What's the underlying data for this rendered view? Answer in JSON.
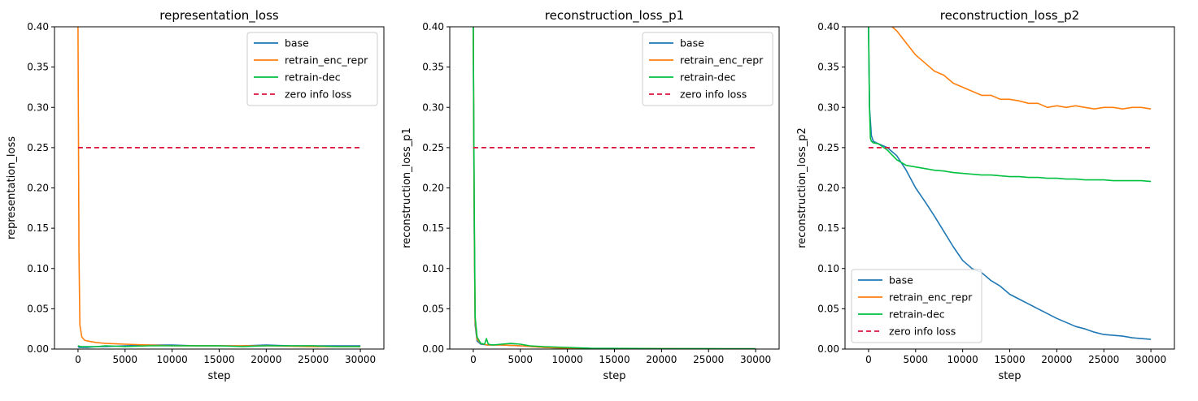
{
  "chart_data": [
    {
      "type": "line",
      "title": "representation_loss",
      "xlabel": "step",
      "ylabel": "representation_loss",
      "xlim": [
        -2500,
        32500
      ],
      "ylim": [
        0,
        0.4
      ],
      "xticks": [
        0,
        5000,
        10000,
        15000,
        20000,
        25000,
        30000
      ],
      "yticks": [
        "0.00",
        "0.05",
        "0.10",
        "0.15",
        "0.20",
        "0.25",
        "0.30",
        "0.35",
        "0.40"
      ],
      "legend_position": "top-right",
      "series": [
        {
          "name": "base",
          "color": "#1f77b4",
          "style": "solid",
          "x": [
            0,
            100,
            300,
            600,
            1000,
            2000,
            3000,
            5000,
            7500,
            10000,
            12500,
            15000,
            17500,
            20000,
            22500,
            25000,
            27500,
            30000
          ],
          "y": [
            0.004,
            0.002,
            0.002,
            0.002,
            0.002,
            0.003,
            0.003,
            0.004,
            0.005,
            0.005,
            0.004,
            0.004,
            0.004,
            0.005,
            0.004,
            0.004,
            0.004,
            0.004
          ]
        },
        {
          "name": "retrain_enc_repr",
          "color": "#ff7f0e",
          "style": "solid",
          "x": [
            0,
            100,
            200,
            400,
            700,
            1000,
            2000,
            3000,
            5000,
            7500,
            10000,
            15000,
            20000,
            25000,
            30000
          ],
          "y": [
            0.4,
            0.12,
            0.03,
            0.015,
            0.011,
            0.01,
            0.008,
            0.007,
            0.006,
            0.005,
            0.004,
            0.004,
            0.004,
            0.003,
            0.003
          ]
        },
        {
          "name": "retrain-dec",
          "color": "#00c040",
          "style": "solid",
          "x": [
            0,
            300,
            1000,
            2000,
            3000,
            5000,
            7500,
            10000,
            12500,
            15000,
            17500,
            20000,
            22500,
            25000,
            27500,
            30000
          ],
          "y": [
            0.004,
            0.003,
            0.003,
            0.003,
            0.004,
            0.003,
            0.004,
            0.004,
            0.004,
            0.004,
            0.003,
            0.004,
            0.004,
            0.004,
            0.003,
            0.003
          ]
        },
        {
          "name": "zero info loss",
          "color": "#dc143c",
          "style": "dashed",
          "x": [
            0,
            30000
          ],
          "y": [
            0.25,
            0.25
          ]
        }
      ]
    },
    {
      "type": "line",
      "title": "reconstruction_loss_p1",
      "xlabel": "step",
      "ylabel": "reconstruction_loss_p1",
      "xlim": [
        -2500,
        32500
      ],
      "ylim": [
        0,
        0.4
      ],
      "xticks": [
        0,
        5000,
        10000,
        15000,
        20000,
        25000,
        30000
      ],
      "yticks": [
        "0.00",
        "0.05",
        "0.10",
        "0.15",
        "0.20",
        "0.25",
        "0.30",
        "0.35",
        "0.40"
      ],
      "legend_position": "top-right",
      "series": [
        {
          "name": "base",
          "color": "#1f77b4",
          "style": "solid",
          "x": [
            0,
            100,
            200,
            400,
            800,
            1500,
            3000,
            5000,
            7500,
            10000,
            15000,
            20000,
            25000,
            30000
          ],
          "y": [
            0.4,
            0.15,
            0.03,
            0.01,
            0.006,
            0.005,
            0.005,
            0.004,
            0.002,
            0.001,
            0.0005,
            0.0004,
            0.0003,
            0.0003
          ]
        },
        {
          "name": "retrain_enc_repr",
          "color": "#ff7f0e",
          "style": "solid",
          "x": [
            0,
            100,
            200,
            400,
            800,
            1500,
            3000,
            5000,
            7500,
            10000,
            15000,
            20000,
            25000,
            30000
          ],
          "y": [
            0.4,
            0.16,
            0.035,
            0.012,
            0.007,
            0.005,
            0.005,
            0.004,
            0.002,
            0.001,
            0.0005,
            0.0004,
            0.0003,
            0.0003
          ]
        },
        {
          "name": "retrain-dec",
          "color": "#00c040",
          "style": "solid",
          "x": [
            0,
            100,
            200,
            400,
            800,
            1200,
            1400,
            1600,
            2000,
            3000,
            4000,
            5000,
            6000,
            7500,
            10000,
            12500,
            15000,
            20000,
            25000,
            30000
          ],
          "y": [
            0.4,
            0.18,
            0.04,
            0.015,
            0.007,
            0.006,
            0.013,
            0.006,
            0.005,
            0.006,
            0.007,
            0.006,
            0.004,
            0.003,
            0.002,
            0.001,
            0.0008,
            0.0005,
            0.0004,
            0.0003
          ]
        },
        {
          "name": "zero info loss",
          "color": "#dc143c",
          "style": "dashed",
          "x": [
            0,
            30000
          ],
          "y": [
            0.25,
            0.25
          ]
        }
      ]
    },
    {
      "type": "line",
      "title": "reconstruction_loss_p2",
      "xlabel": "step",
      "ylabel": "reconstruction_loss_p2",
      "xlim": [
        -2500,
        32500
      ],
      "ylim": [
        0,
        0.4
      ],
      "xticks": [
        0,
        5000,
        10000,
        15000,
        20000,
        25000,
        30000
      ],
      "yticks": [
        "0.00",
        "0.05",
        "0.10",
        "0.15",
        "0.20",
        "0.25",
        "0.30",
        "0.35",
        "0.40"
      ],
      "legend_position": "bottom-left",
      "series": [
        {
          "name": "base",
          "color": "#1f77b4",
          "style": "solid",
          "x": [
            0,
            100,
            300,
            500,
            1000,
            2000,
            3000,
            4000,
            5000,
            6000,
            7000,
            8000,
            9000,
            10000,
            11000,
            12000,
            13000,
            14000,
            15000,
            16000,
            17000,
            18000,
            19000,
            20000,
            21000,
            22000,
            23000,
            24000,
            25000,
            26000,
            27000,
            28000,
            29000,
            30000
          ],
          "y": [
            0.4,
            0.3,
            0.265,
            0.258,
            0.255,
            0.25,
            0.24,
            0.222,
            0.2,
            0.183,
            0.165,
            0.146,
            0.127,
            0.11,
            0.1,
            0.095,
            0.085,
            0.078,
            0.068,
            0.062,
            0.056,
            0.05,
            0.044,
            0.038,
            0.033,
            0.028,
            0.025,
            0.021,
            0.018,
            0.017,
            0.016,
            0.014,
            0.013,
            0.012
          ]
        },
        {
          "name": "retrain_enc_repr",
          "color": "#ff7f0e",
          "style": "solid",
          "x": [
            2500,
            3000,
            4000,
            5000,
            6000,
            7000,
            8000,
            9000,
            10000,
            11000,
            12000,
            13000,
            14000,
            15000,
            16000,
            17000,
            18000,
            19000,
            20000,
            21000,
            22000,
            23000,
            24000,
            25000,
            26000,
            27000,
            28000,
            29000,
            30000
          ],
          "y": [
            0.4,
            0.395,
            0.38,
            0.365,
            0.355,
            0.345,
            0.34,
            0.33,
            0.325,
            0.32,
            0.315,
            0.315,
            0.31,
            0.31,
            0.308,
            0.305,
            0.305,
            0.3,
            0.302,
            0.3,
            0.302,
            0.3,
            0.298,
            0.3,
            0.3,
            0.298,
            0.3,
            0.3,
            0.298
          ]
        },
        {
          "name": "retrain-dec",
          "color": "#00c040",
          "style": "solid",
          "x": [
            0,
            100,
            200,
            300,
            500,
            1000,
            2000,
            3000,
            4000,
            5000,
            6000,
            7000,
            8000,
            9000,
            10000,
            11000,
            12000,
            13000,
            14000,
            15000,
            16000,
            17000,
            18000,
            19000,
            20000,
            21000,
            22000,
            23000,
            24000,
            25000,
            26000,
            27000,
            28000,
            29000,
            30000
          ],
          "y": [
            0.4,
            0.3,
            0.262,
            0.258,
            0.256,
            0.255,
            0.247,
            0.235,
            0.228,
            0.226,
            0.224,
            0.222,
            0.221,
            0.219,
            0.218,
            0.217,
            0.216,
            0.216,
            0.215,
            0.214,
            0.214,
            0.213,
            0.213,
            0.212,
            0.212,
            0.211,
            0.211,
            0.21,
            0.21,
            0.21,
            0.209,
            0.209,
            0.209,
            0.209,
            0.208
          ]
        },
        {
          "name": "zero info loss",
          "color": "#dc143c",
          "style": "dashed",
          "x": [
            0,
            30000
          ],
          "y": [
            0.25,
            0.25
          ]
        }
      ]
    }
  ]
}
